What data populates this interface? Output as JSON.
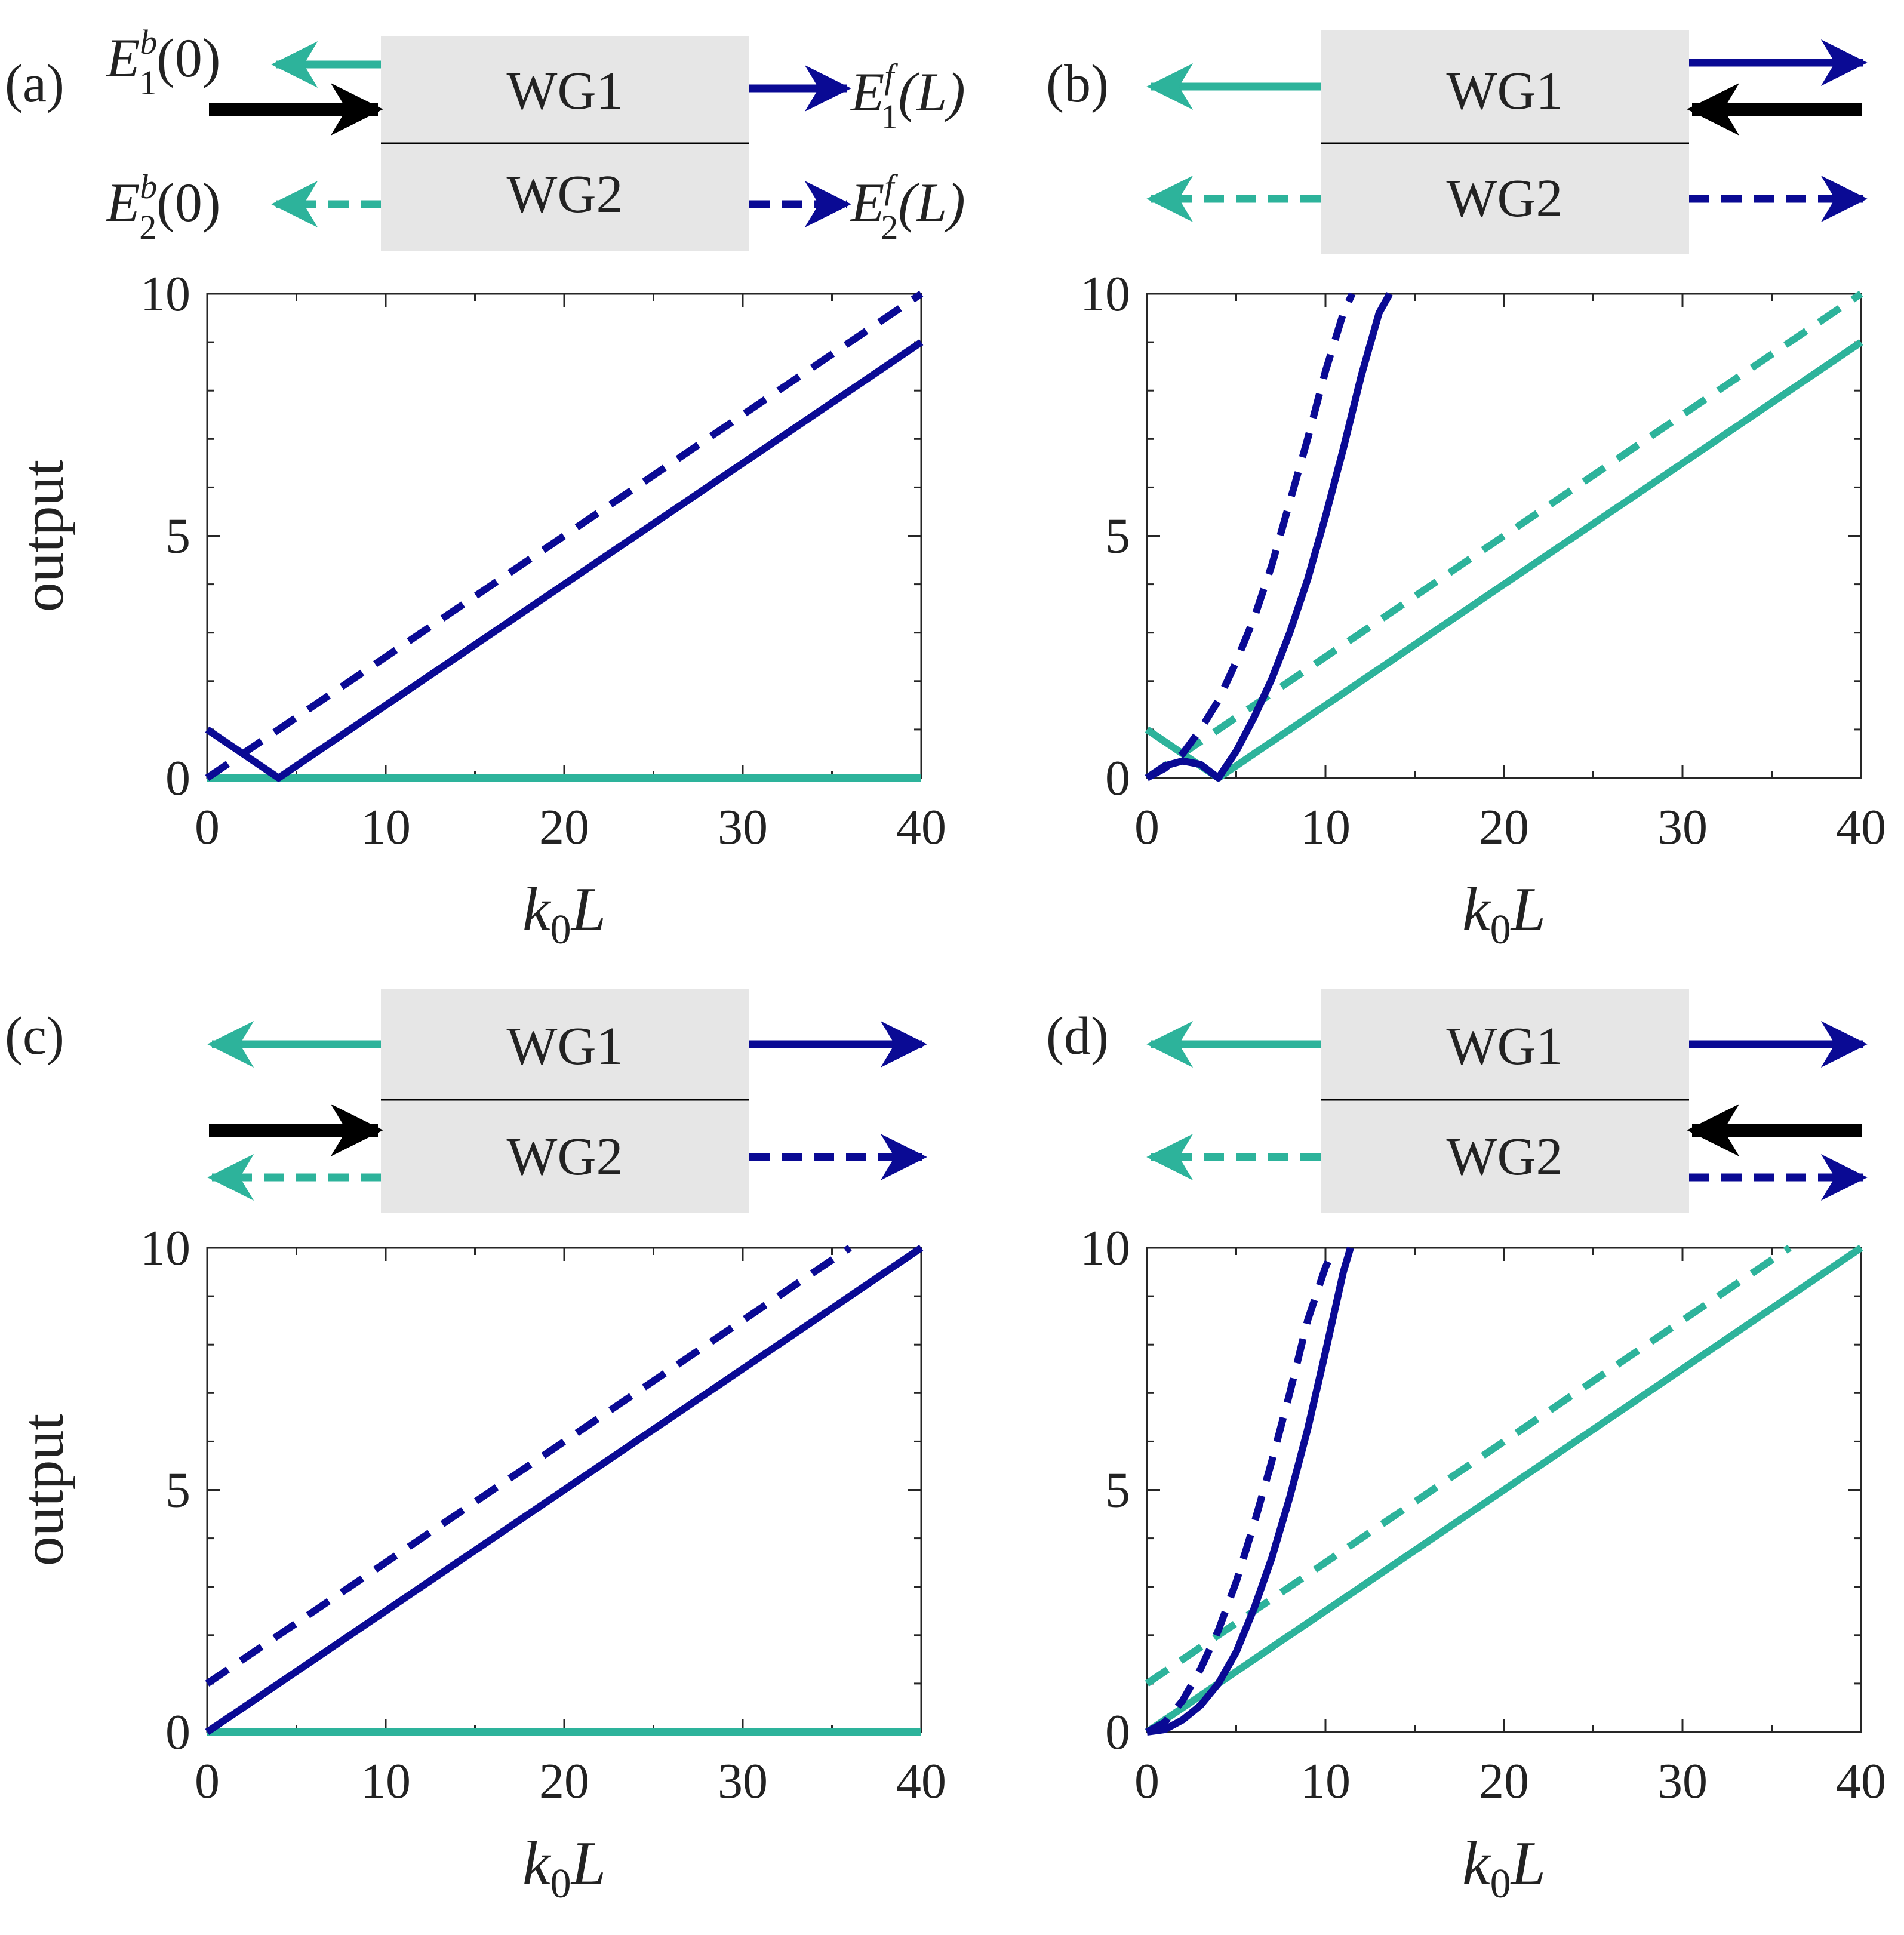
{
  "figure": {
    "colors": {
      "teal": "#2db39b",
      "navy": "#0a0a94",
      "black": "#000000",
      "box": "#e6e6e6",
      "axis": "#262626"
    }
  },
  "chart_data": [
    {
      "panel_label": "(a)",
      "type": "line",
      "xlabel": "k0L",
      "ylabel": "output",
      "xlim": [
        0,
        40
      ],
      "ylim": [
        0,
        10
      ],
      "xticks": [
        0,
        10,
        20,
        30,
        40
      ],
      "yticks": [
        0,
        5,
        10
      ],
      "series": [
        {
          "name": "E1f(L)",
          "color": "#0a0a94",
          "dash": false,
          "x": [
            0,
            4,
            40
          ],
          "y": [
            1,
            0,
            9
          ]
        },
        {
          "name": "E2f(L)",
          "color": "#0a0a94",
          "dash": true,
          "x": [
            0,
            40
          ],
          "y": [
            0,
            10
          ]
        },
        {
          "name": "E1b(0)",
          "color": "#2db39b",
          "dash": false,
          "x": [
            0,
            40
          ],
          "y": [
            0,
            0
          ]
        }
      ],
      "schematic": {
        "wg1_label": "WG1",
        "wg2_label": "WG2",
        "input": "WG1-left",
        "labels": {
          "b1_main": "E",
          "b1_sup": "b",
          "b1_sub": "1",
          "b1_arg": "(0)",
          "b2_main": "E",
          "b2_sup": "b",
          "b2_sub": "2",
          "b2_arg": "(0)",
          "f1_main": "E",
          "f1_sup": "f",
          "f1_sub": "1",
          "f1_arg": "(L)",
          "f2_main": "E",
          "f2_sup": "f",
          "f2_sub": "2",
          "f2_arg": "(L)"
        }
      }
    },
    {
      "panel_label": "(b)",
      "type": "line",
      "xlabel": "k0L",
      "ylabel": "",
      "xlim": [
        0,
        40
      ],
      "ylim": [
        0,
        10
      ],
      "xticks": [
        0,
        10,
        20,
        30,
        40
      ],
      "yticks": [
        0,
        5,
        10
      ],
      "series": [
        {
          "name": "E1f",
          "color": "#0a0a94",
          "dash": false,
          "x": [
            0,
            1,
            2,
            3,
            4,
            5,
            6,
            7,
            8,
            9,
            10,
            11,
            12,
            13,
            13.6
          ],
          "y": [
            0,
            0.25,
            0.35,
            0.28,
            0,
            0.55,
            1.25,
            2.05,
            3.0,
            4.1,
            5.4,
            6.8,
            8.3,
            9.6,
            10
          ]
        },
        {
          "name": "E2f",
          "color": "#0a0a94",
          "dash": true,
          "x": [
            0,
            1,
            2,
            3,
            4,
            5,
            6,
            7,
            8,
            9,
            10,
            11,
            11.5
          ],
          "y": [
            0,
            0.2,
            0.5,
            1.0,
            1.6,
            2.4,
            3.3,
            4.4,
            5.7,
            7.0,
            8.4,
            9.6,
            10
          ]
        },
        {
          "name": "E1b",
          "color": "#2db39b",
          "dash": false,
          "x": [
            0,
            4,
            40
          ],
          "y": [
            1,
            0,
            9
          ]
        },
        {
          "name": "E2b",
          "color": "#2db39b",
          "dash": true,
          "x": [
            0,
            40
          ],
          "y": [
            0,
            10
          ]
        }
      ],
      "schematic": {
        "wg1_label": "WG1",
        "wg2_label": "WG2",
        "input": "WG1-right"
      }
    },
    {
      "panel_label": "(c)",
      "type": "line",
      "xlabel": "k0L",
      "ylabel": "output",
      "xlim": [
        0,
        40
      ],
      "ylim": [
        0,
        10
      ],
      "xticks": [
        0,
        10,
        20,
        30,
        40
      ],
      "yticks": [
        0,
        5,
        10
      ],
      "series": [
        {
          "name": "E1f",
          "color": "#0a0a94",
          "dash": false,
          "x": [
            0,
            40
          ],
          "y": [
            0,
            10
          ]
        },
        {
          "name": "E2f",
          "color": "#0a0a94",
          "dash": true,
          "x": [
            0,
            36
          ],
          "y": [
            1,
            10
          ]
        },
        {
          "name": "E1b",
          "color": "#2db39b",
          "dash": false,
          "x": [
            0,
            40
          ],
          "y": [
            0,
            0
          ]
        }
      ],
      "schematic": {
        "wg1_label": "WG1",
        "wg2_label": "WG2",
        "input": "WG2-left"
      }
    },
    {
      "panel_label": "(d)",
      "type": "line",
      "xlabel": "k0L",
      "ylabel": "",
      "xlim": [
        0,
        40
      ],
      "ylim": [
        0,
        10
      ],
      "xticks": [
        0,
        10,
        20,
        30,
        40
      ],
      "yticks": [
        0,
        5,
        10
      ],
      "series": [
        {
          "name": "E1f",
          "color": "#0a0a94",
          "dash": false,
          "x": [
            0,
            1,
            2,
            3,
            4,
            5,
            6,
            7,
            8,
            9,
            10,
            11,
            11.4
          ],
          "y": [
            0,
            0.05,
            0.25,
            0.55,
            1.0,
            1.65,
            2.55,
            3.6,
            4.85,
            6.25,
            7.85,
            9.5,
            10
          ]
        },
        {
          "name": "E2f",
          "color": "#0a0a94",
          "dash": true,
          "x": [
            0,
            1,
            2,
            3,
            4,
            5,
            6,
            7,
            8,
            9,
            10,
            10.5
          ],
          "y": [
            0,
            0.2,
            0.65,
            1.3,
            2.1,
            3.1,
            4.3,
            5.6,
            7.0,
            8.5,
            9.6,
            10
          ]
        },
        {
          "name": "E1b",
          "color": "#2db39b",
          "dash": false,
          "x": [
            0,
            40
          ],
          "y": [
            0,
            10
          ]
        },
        {
          "name": "E2b",
          "color": "#2db39b",
          "dash": true,
          "x": [
            0,
            36
          ],
          "y": [
            1,
            10
          ]
        }
      ],
      "schematic": {
        "wg1_label": "WG1",
        "wg2_label": "WG2",
        "input": "WG2-right"
      }
    }
  ]
}
